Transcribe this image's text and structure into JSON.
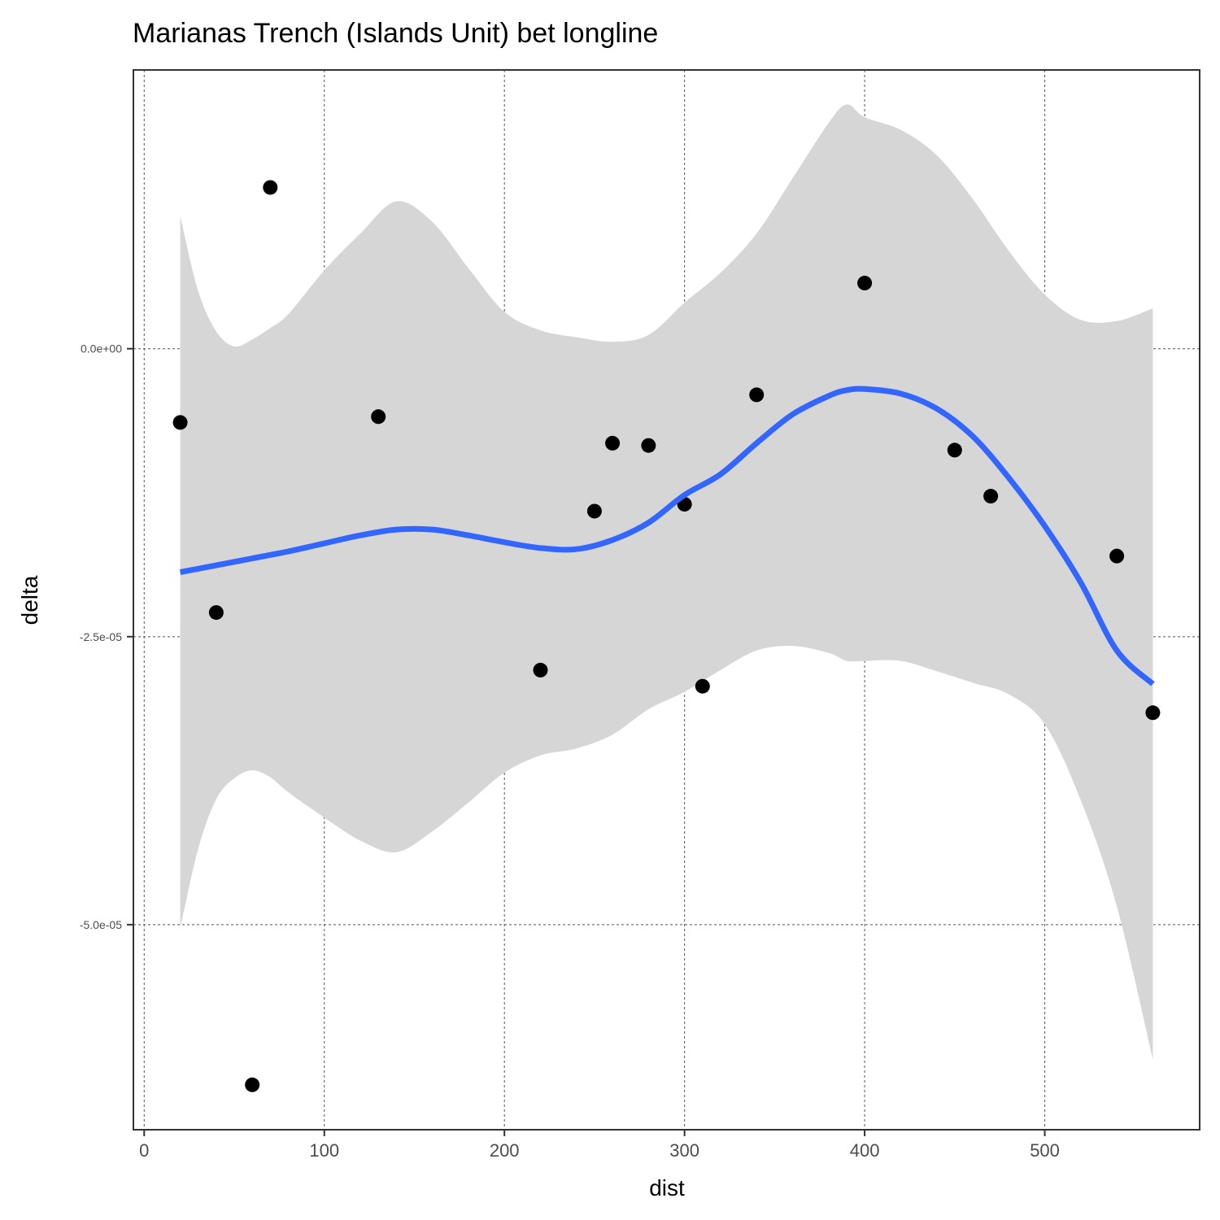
{
  "chart_data": {
    "type": "scatter",
    "title": "Marianas Trench (Islands Unit) bet longline",
    "xlabel": "dist",
    "ylabel": "delta",
    "xlim": [
      -6,
      586
    ],
    "ylim": [
      -6.78e-05,
      2.42e-05
    ],
    "x_ticks": [
      0,
      100,
      200,
      300,
      400,
      500
    ],
    "x_tick_labels": [
      "0",
      "100",
      "200",
      "300",
      "400",
      "500"
    ],
    "y_ticks": [
      0,
      -2.5e-05,
      -5e-05
    ],
    "y_tick_labels": [
      "0.0e+00",
      "-2.5e-05",
      "-5.0e-05"
    ],
    "grid": true,
    "points": [
      {
        "x": 20,
        "y": -6.4e-06
      },
      {
        "x": 40,
        "y": -2.29e-05
      },
      {
        "x": 60,
        "y": -6.39e-05
      },
      {
        "x": 70,
        "y": 1.4e-05
      },
      {
        "x": 130,
        "y": -5.9e-06
      },
      {
        "x": 220,
        "y": -2.79e-05
      },
      {
        "x": 250,
        "y": -1.41e-05
      },
      {
        "x": 260,
        "y": -8.2e-06
      },
      {
        "x": 280,
        "y": -8.4e-06
      },
      {
        "x": 300,
        "y": -1.35e-05
      },
      {
        "x": 310,
        "y": -2.93e-05
      },
      {
        "x": 340,
        "y": -4e-06
      },
      {
        "x": 400,
        "y": 5.7e-06
      },
      {
        "x": 450,
        "y": -8.8e-06
      },
      {
        "x": 470,
        "y": -1.28e-05
      },
      {
        "x": 540,
        "y": -1.8e-05
      },
      {
        "x": 560,
        "y": -3.16e-05
      }
    ],
    "smooth": {
      "color": "#3366FF",
      "band_color": "#D6D6D6",
      "x": [
        20,
        30,
        40,
        50,
        60,
        70,
        80,
        100,
        120,
        140,
        160,
        180,
        200,
        220,
        240,
        260,
        280,
        300,
        320,
        340,
        360,
        380,
        390,
        400,
        420,
        440,
        460,
        480,
        500,
        520,
        540,
        560
      ],
      "y": [
        -1.94e-05,
        -1.91e-05,
        -1.88e-05,
        -1.85e-05,
        -1.82e-05,
        -1.79e-05,
        -1.76e-05,
        -1.69e-05,
        -1.62e-05,
        -1.57e-05,
        -1.57e-05,
        -1.62e-05,
        -1.68e-05,
        -1.73e-05,
        -1.74e-05,
        -1.66e-05,
        -1.51e-05,
        -1.27e-05,
        -1.09e-05,
        -8.2e-06,
        -5.7e-06,
        -4.1e-06,
        -3.6e-06,
        -3.5e-06,
        -3.9e-06,
        -5.2e-06,
        -7.6e-06,
        -1.12e-05,
        -1.54e-05,
        -2.03e-05,
        -2.62e-05,
        -2.91e-05
      ],
      "upper": [
        1.15e-05,
        5e-06,
        1.5e-06,
        2e-07,
        8e-07,
        1.8e-06,
        3e-06,
        6.8e-06,
        1e-05,
        1.28e-05,
        1.1e-05,
        7e-06,
        3.2e-06,
        1.6e-06,
        1e-06,
        6e-07,
        1.2e-06,
        4e-06,
        6.6e-06,
        1e-05,
        1.48e-05,
        1.96e-05,
        2.12e-05,
        2.01e-05,
        1.9e-05,
        1.68e-05,
        1.3e-05,
        8.5e-06,
        4.7e-06,
        2.5e-06,
        2.4e-06,
        3.5e-06
      ],
      "lower": [
        -5.03e-05,
        -4.34e-05,
        -3.91e-05,
        -3.73e-05,
        -3.66e-05,
        -3.72e-05,
        -3.85e-05,
        -4.07e-05,
        -4.27e-05,
        -4.37e-05,
        -4.19e-05,
        -3.94e-05,
        -3.68e-05,
        -3.53e-05,
        -3.47e-05,
        -3.35e-05,
        -3.13e-05,
        -2.98e-05,
        -2.79e-05,
        -2.62e-05,
        -2.58e-05,
        -2.64e-05,
        -2.71e-05,
        -2.71e-05,
        -2.71e-05,
        -2.8e-05,
        -2.9e-05,
        -3e-05,
        -3.26e-05,
        -3.92e-05,
        -4.84e-05,
        -6.17e-05
      ]
    }
  }
}
